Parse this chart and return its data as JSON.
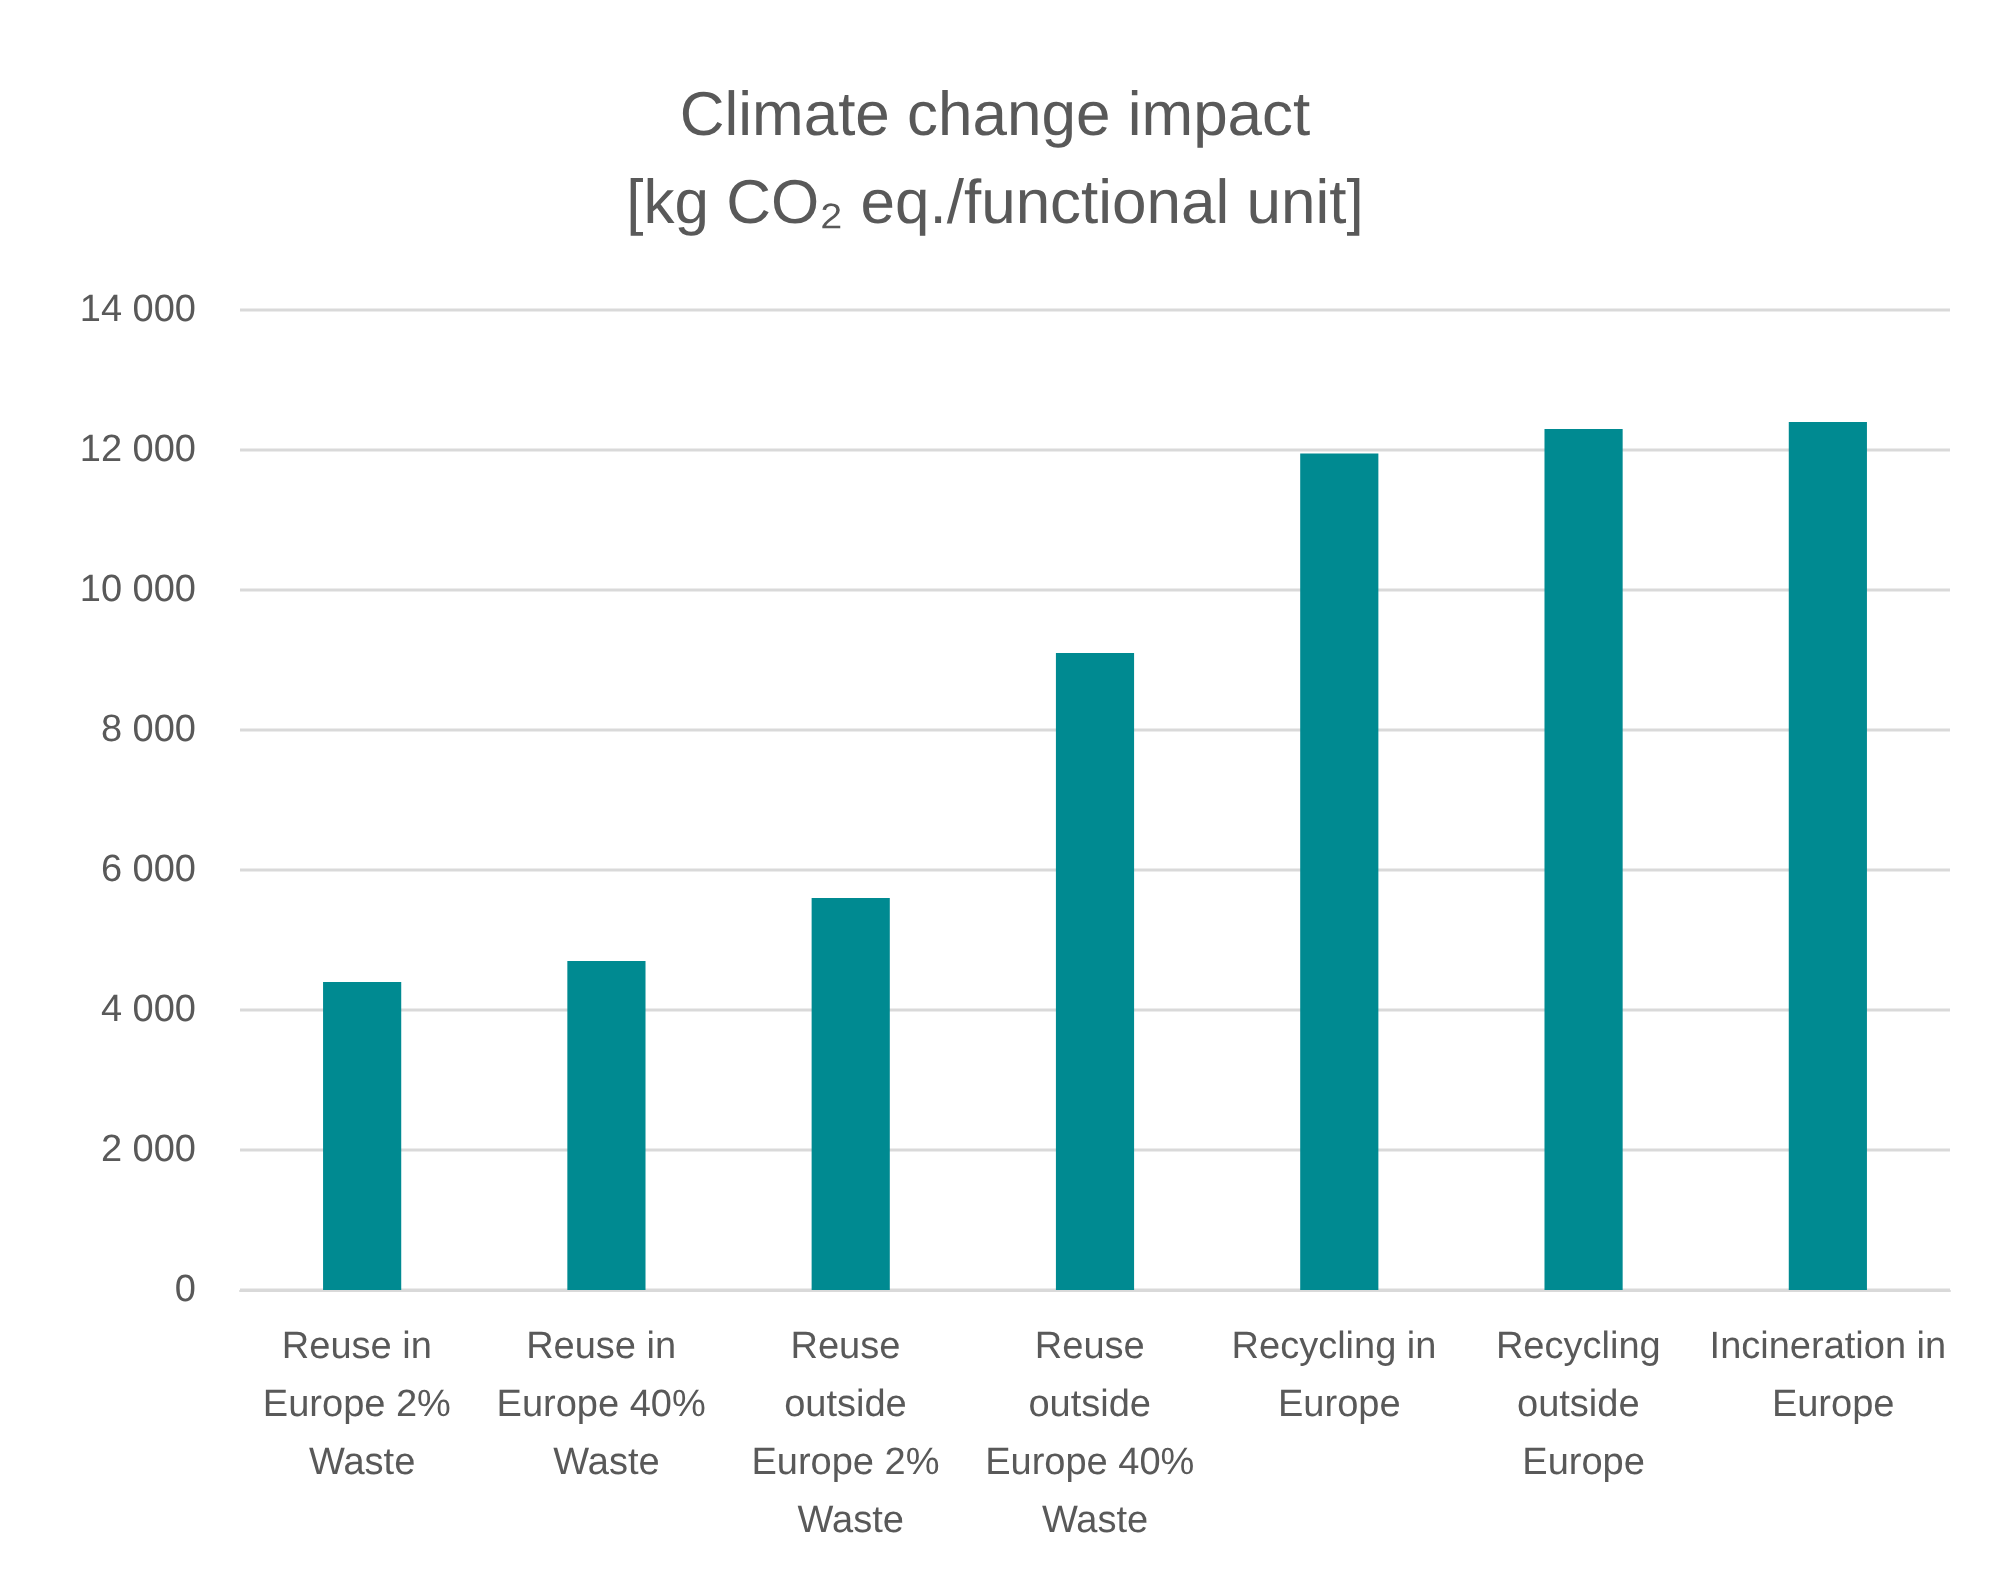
{
  "chart_data": {
    "type": "bar",
    "title": "Climate change impact\n[kg CO₂ eq./functional unit]",
    "categories": [
      "Reuse in Europe 2% Waste",
      "Reuse in Europe 40% Waste",
      "Reuse outside Europe 2% Waste",
      "Reuse outside Europe 40% Waste",
      "Recycling in Europe",
      "Recycling outside Europe",
      "Incineration in Europe"
    ],
    "values": [
      4400,
      4700,
      5600,
      9100,
      11950,
      12300,
      12400
    ],
    "color": "#008a91",
    "ylim": [
      0,
      14000
    ],
    "yticks": [
      {
        "value": 0,
        "label": "0"
      },
      {
        "value": 2000,
        "label": "2 000"
      },
      {
        "value": 4000,
        "label": "4 000"
      },
      {
        "value": 6000,
        "label": "6 000"
      },
      {
        "value": 8000,
        "label": "8 000"
      },
      {
        "value": 10000,
        "label": "10 000"
      },
      {
        "value": 12000,
        "label": "12 000"
      },
      {
        "value": 14000,
        "label": "14 000"
      }
    ],
    "grid": true
  }
}
